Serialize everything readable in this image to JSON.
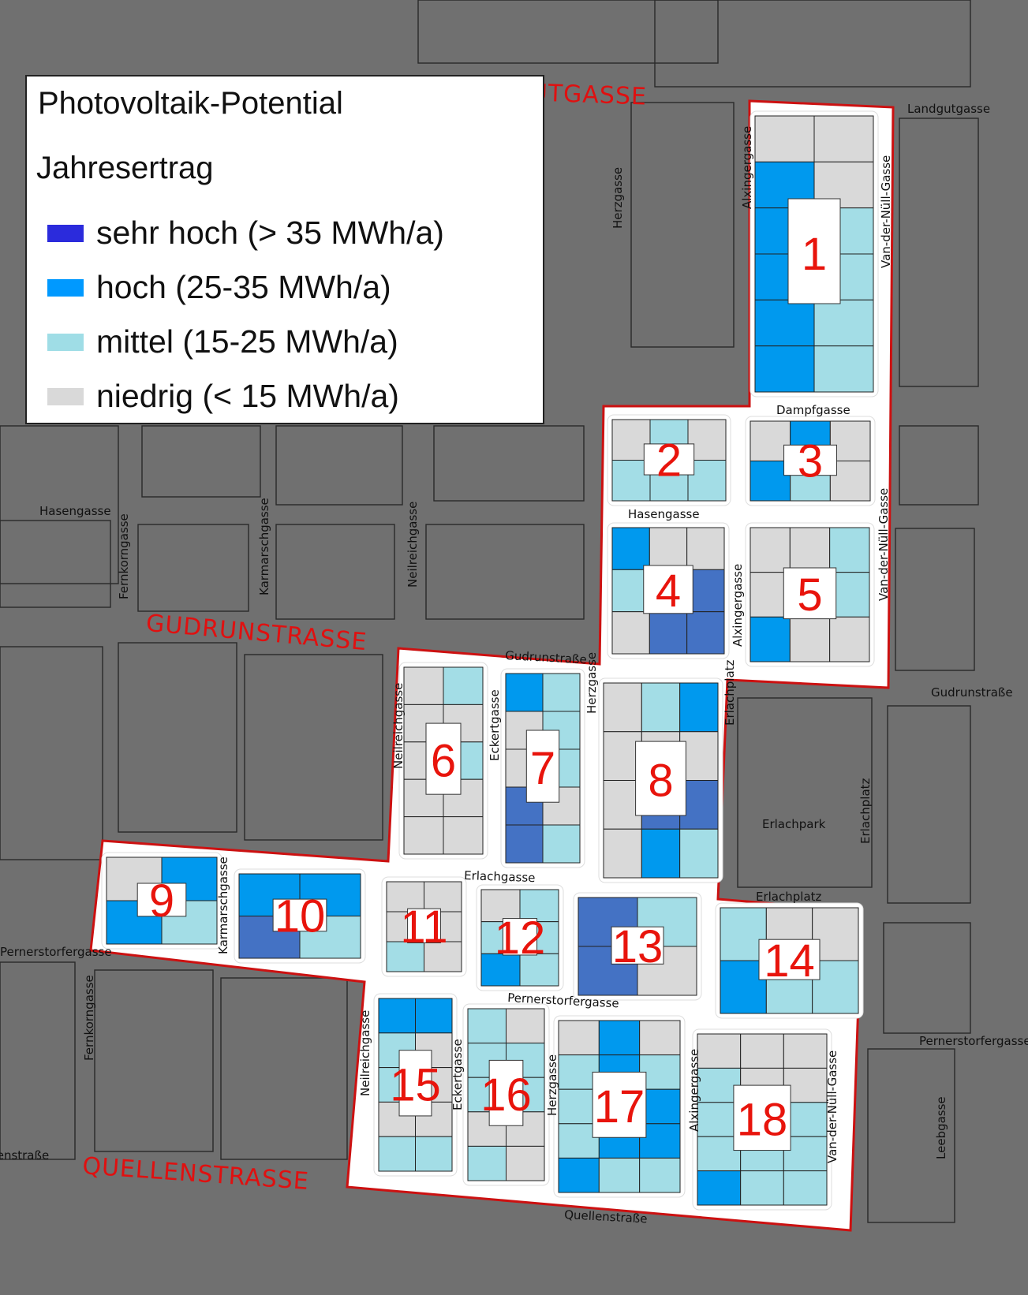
{
  "legend": {
    "title": "Photovoltaik-Potential",
    "subtitle": "Jahresertrag",
    "items": [
      {
        "key": "sehr",
        "label": "sehr hoch (> 35 MWh/a)",
        "color": "#2b2bdc"
      },
      {
        "key": "hoch",
        "label": "hoch (25-35 MWh/a)",
        "color": "#0099ff"
      },
      {
        "key": "mittel",
        "label": "mittel (15-25 MWh/a)",
        "color": "#9fdde6"
      },
      {
        "key": "niedrig",
        "label": "niedrig (< 15 MWh/a)",
        "color": "#d9d9d9"
      }
    ]
  },
  "map_colors": {
    "sehr": "#4472c4",
    "hoch": "#0099ee",
    "mittel": "#a3dde6",
    "niedrig": "#d9d9d9",
    "background": "#707070",
    "project_area": "#ffffff",
    "boundary": "#cc1111"
  },
  "major_streets": [
    "LANDGUTGASSE",
    "GUDRUNSTRASSE",
    "QUELLENSTRASSE"
  ],
  "streets": [
    "Landgutgasse",
    "Herzgasse",
    "Alxingergasse",
    "Van-der-Nüll-Gasse",
    "Dampfgasse",
    "Hasengasse",
    "Hasengasse",
    "Alxingergasse",
    "Van-der-Nüll-Gasse",
    "Gudrunstraße",
    "Neilreichgasse",
    "Eckertgasse",
    "Herzgasse",
    "Erlachplatz",
    "Erlachpark",
    "Erlachplatz",
    "Erlachplatz",
    "Erlachgasse",
    "Karmarschgasse",
    "Fernkorngasse",
    "Karmarschgasse",
    "Neilreichgasse",
    "Fernkorngasse",
    "Pernerstorfergasse",
    "Pernerstorfergasse",
    "Neilreichgasse",
    "Eckertgasse",
    "Herzgasse",
    "Alxingergasse",
    "Van-der-Nüll-Gasse",
    "Quellenstraße",
    "Leebgasse",
    "Gudrunstraße",
    "Pernerstorfergasse",
    "Favoritenstraße"
  ],
  "blocks": [
    {
      "id": "1",
      "cells": [
        "niedrig",
        "niedrig",
        "hoch",
        "niedrig",
        "hoch",
        "mittel",
        "hoch",
        "mittel",
        "hoch",
        "mittel",
        "hoch",
        "mittel"
      ]
    },
    {
      "id": "2",
      "cells": [
        "niedrig",
        "mittel",
        "niedrig",
        "mittel",
        "mittel",
        "mittel"
      ]
    },
    {
      "id": "3",
      "cells": [
        "niedrig",
        "hoch",
        "niedrig",
        "hoch",
        "mittel",
        "niedrig"
      ]
    },
    {
      "id": "4",
      "cells": [
        "hoch",
        "niedrig",
        "niedrig",
        "mittel",
        "sehr",
        "sehr",
        "niedrig",
        "sehr",
        "sehr"
      ]
    },
    {
      "id": "5",
      "cells": [
        "niedrig",
        "niedrig",
        "mittel",
        "niedrig",
        "niedrig",
        "mittel",
        "hoch",
        "niedrig",
        "niedrig"
      ]
    },
    {
      "id": "6",
      "cells": [
        "niedrig",
        "mittel",
        "niedrig",
        "niedrig",
        "niedrig",
        "mittel",
        "niedrig",
        "niedrig",
        "niedrig",
        "niedrig"
      ]
    },
    {
      "id": "7",
      "cells": [
        "hoch",
        "mittel",
        "niedrig",
        "mittel",
        "niedrig",
        "mittel",
        "sehr",
        "niedrig",
        "sehr",
        "mittel"
      ]
    },
    {
      "id": "8",
      "cells": [
        "niedrig",
        "mittel",
        "hoch",
        "niedrig",
        "niedrig",
        "niedrig",
        "niedrig",
        "sehr",
        "sehr",
        "niedrig",
        "hoch",
        "mittel"
      ]
    },
    {
      "id": "9",
      "cells": [
        "niedrig",
        "hoch",
        "hoch",
        "mittel"
      ]
    },
    {
      "id": "10",
      "cells": [
        "hoch",
        "hoch",
        "sehr",
        "mittel"
      ]
    },
    {
      "id": "11",
      "cells": [
        "niedrig",
        "niedrig",
        "niedrig",
        "niedrig",
        "mittel",
        "niedrig"
      ]
    },
    {
      "id": "12",
      "cells": [
        "niedrig",
        "mittel",
        "mittel",
        "mittel",
        "hoch",
        "mittel"
      ]
    },
    {
      "id": "13",
      "cells": [
        "sehr",
        "mittel",
        "sehr",
        "niedrig"
      ]
    },
    {
      "id": "14",
      "cells": [
        "mittel",
        "niedrig",
        "niedrig",
        "hoch",
        "mittel",
        "mittel"
      ]
    },
    {
      "id": "15",
      "cells": [
        "hoch",
        "hoch",
        "mittel",
        "niedrig",
        "mittel",
        "niedrig",
        "niedrig",
        "niedrig",
        "mittel",
        "mittel"
      ]
    },
    {
      "id": "16",
      "cells": [
        "mittel",
        "niedrig",
        "mittel",
        "mittel",
        "mittel",
        "mittel",
        "niedrig",
        "niedrig",
        "mittel",
        "niedrig"
      ]
    },
    {
      "id": "17",
      "cells": [
        "niedrig",
        "hoch",
        "niedrig",
        "mittel",
        "hoch",
        "mittel",
        "mittel",
        "hoch",
        "hoch",
        "mittel",
        "hoch",
        "hoch",
        "hoch",
        "mittel",
        "mittel"
      ]
    },
    {
      "id": "18",
      "cells": [
        "niedrig",
        "niedrig",
        "niedrig",
        "mittel",
        "niedrig",
        "niedrig",
        "mittel",
        "niedrig",
        "mittel",
        "mittel",
        "mittel",
        "mittel",
        "hoch",
        "mittel",
        "mittel"
      ]
    }
  ]
}
